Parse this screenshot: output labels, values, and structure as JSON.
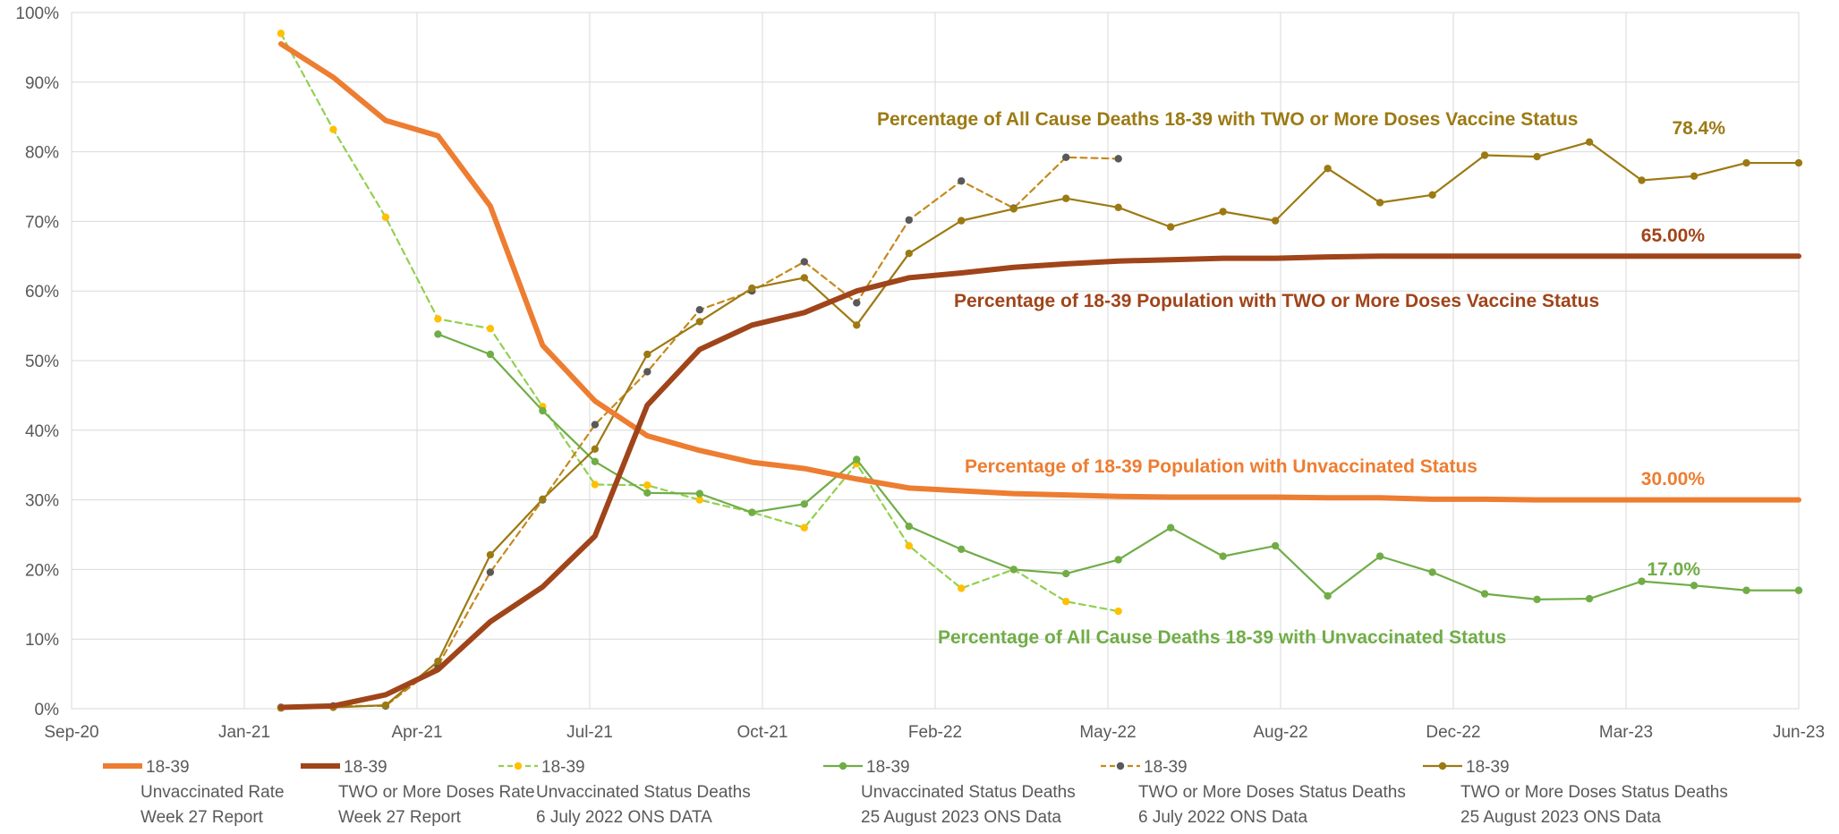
{
  "chart_data": {
    "type": "line",
    "x_ticks": [
      "Sep-20",
      "Jan-21",
      "Apr-21",
      "Jul-21",
      "Oct-21",
      "Feb-22",
      "May-22",
      "Aug-22",
      "Dec-22",
      "Mar-23",
      "Jun-23"
    ],
    "y_ticks": [
      "0%",
      "10%",
      "20%",
      "30%",
      "40%",
      "50%",
      "60%",
      "70%",
      "80%",
      "90%",
      "100%"
    ],
    "ylim": [
      0,
      100
    ],
    "grid": true,
    "legend_position": "bottom",
    "series": [
      {
        "name": "18-39",
        "legend_line2": "Unvaccinated Rate",
        "legend_line3": "Week 27 Report",
        "color": "#ED7D31",
        "style": "solid",
        "width": "thick",
        "x": [
          "2021-01-01",
          "2021-02-01",
          "2021-03-01",
          "2021-04-01",
          "2021-05-01",
          "2021-06-01",
          "2021-07-01",
          "2021-08-01",
          "2021-09-01",
          "2021-10-01",
          "2021-11-01",
          "2021-12-01",
          "2022-01-01",
          "2022-02-01",
          "2022-03-01",
          "2022-04-01",
          "2022-05-01",
          "2022-06-01",
          "2022-07-01",
          "2022-08-01",
          "2022-09-01",
          "2022-10-01",
          "2022-11-01",
          "2022-12-01",
          "2023-01-01",
          "2023-02-01",
          "2023-03-01",
          "2023-04-01",
          "2023-05-01",
          "2023-06-01"
        ],
        "values": [
          95.5,
          90.7,
          84.5,
          82.3,
          72.2,
          52.2,
          44.2,
          39.2,
          37.1,
          35.4,
          34.5,
          33.0,
          31.7,
          31.3,
          30.9,
          30.7,
          30.5,
          30.4,
          30.4,
          30.4,
          30.3,
          30.3,
          30.1,
          30.1,
          30.0,
          30.0,
          30.0,
          30.0,
          30.0,
          30.0
        ],
        "marker": "none"
      },
      {
        "name": "18-39",
        "legend_line2": "TWO or More Doses Rate",
        "legend_line3": "Week 27 Report",
        "color": "#A0441A",
        "style": "solid",
        "width": "thick",
        "x": [
          "2021-01-01",
          "2021-02-01",
          "2021-03-01",
          "2021-04-01",
          "2021-05-01",
          "2021-06-01",
          "2021-07-01",
          "2021-08-01",
          "2021-09-01",
          "2021-10-01",
          "2021-11-01",
          "2021-12-01",
          "2022-01-01",
          "2022-02-01",
          "2022-03-01",
          "2022-04-01",
          "2022-05-01",
          "2022-06-01",
          "2022-07-01",
          "2022-08-01",
          "2022-09-01",
          "2022-10-01",
          "2022-11-01",
          "2022-12-01",
          "2023-01-01",
          "2023-02-01",
          "2023-03-01",
          "2023-04-01",
          "2023-05-01",
          "2023-06-01"
        ],
        "values": [
          0.2,
          0.4,
          2.0,
          5.6,
          12.5,
          17.5,
          24.8,
          43.6,
          51.6,
          55.1,
          56.9,
          60.0,
          61.9,
          62.6,
          63.4,
          63.9,
          64.3,
          64.5,
          64.7,
          64.7,
          64.9,
          65.0,
          65.0,
          65.0,
          65.0,
          65.0,
          65.0,
          65.0,
          65.0,
          65.0
        ],
        "marker": "none"
      },
      {
        "name": "18-39",
        "legend_line2": "Unvaccinated Status Deaths",
        "legend_line3": "6 July 2022 ONS DATA",
        "color": "#92D050",
        "marker_color": "#FFC000",
        "style": "dashed",
        "width": "thin",
        "x": [
          "2021-01-01",
          "2021-02-01",
          "2021-03-01",
          "2021-04-01",
          "2021-05-01",
          "2021-06-01",
          "2021-07-01",
          "2021-08-01",
          "2021-09-01",
          "2021-10-01",
          "2021-11-01",
          "2021-12-01",
          "2022-01-01",
          "2022-02-01",
          "2022-03-01",
          "2022-04-01",
          "2022-05-01"
        ],
        "values": [
          97.0,
          83.2,
          70.6,
          56.0,
          54.6,
          43.4,
          32.2,
          32.1,
          30.0,
          28.2,
          26.0,
          35.2,
          23.4,
          17.3,
          20.0,
          15.4,
          14.0
        ],
        "marker": "dot"
      },
      {
        "name": "18-39",
        "legend_line2": "Unvaccinated Status Deaths",
        "legend_line3": "25 August 2023 ONS Data",
        "color": "#70AD47",
        "marker_color": "#70AD47",
        "style": "solid",
        "width": "thin",
        "x": [
          "2021-04-01",
          "2021-05-01",
          "2021-06-01",
          "2021-07-01",
          "2021-08-01",
          "2021-09-01",
          "2021-10-01",
          "2021-11-01",
          "2021-12-01",
          "2022-01-01",
          "2022-02-01",
          "2022-03-01",
          "2022-04-01",
          "2022-05-01",
          "2022-06-01",
          "2022-07-01",
          "2022-08-01",
          "2022-09-01",
          "2022-10-01",
          "2022-11-01",
          "2022-12-01",
          "2023-01-01",
          "2023-02-01",
          "2023-03-01",
          "2023-04-01",
          "2023-05-01",
          "2023-06-01"
        ],
        "values": [
          53.8,
          50.9,
          42.8,
          35.5,
          31.0,
          30.9,
          28.2,
          29.4,
          35.8,
          26.2,
          22.9,
          20.0,
          19.4,
          21.4,
          26.0,
          21.9,
          23.4,
          16.2,
          21.9,
          19.6,
          16.5,
          15.7,
          15.8,
          18.3,
          17.7,
          17.0,
          17.0
        ],
        "marker": "dot"
      },
      {
        "name": "18-39",
        "legend_line2": "TWO or More Doses Status Deaths",
        "legend_line3": "6 July 2022 ONS Data",
        "color": "#C5891C",
        "marker_color": "#595959",
        "style": "dashed",
        "width": "thin",
        "x": [
          "2021-01-01",
          "2021-02-01",
          "2021-03-01",
          "2021-04-01",
          "2021-05-01",
          "2021-06-01",
          "2021-07-01",
          "2021-08-01",
          "2021-09-01",
          "2021-10-01",
          "2021-11-01",
          "2021-12-01",
          "2022-01-01",
          "2022-02-01",
          "2022-03-01",
          "2022-04-01",
          "2022-05-01"
        ],
        "values": [
          0.2,
          0.4,
          0.4,
          6.2,
          19.6,
          30.0,
          40.8,
          48.4,
          57.3,
          60.0,
          64.2,
          58.3,
          70.2,
          75.8,
          71.9,
          79.2,
          79.0
        ],
        "marker": "dot"
      },
      {
        "name": "18-39",
        "legend_line2": "TWO or More Doses Status Deaths",
        "legend_line3": "25 August 2023 ONS Data",
        "color": "#9C7A13",
        "marker_color": "#9C7A13",
        "style": "solid",
        "width": "thin",
        "x": [
          "2021-01-01",
          "2021-02-01",
          "2021-03-01",
          "2021-04-01",
          "2021-05-01",
          "2021-06-01",
          "2021-07-01",
          "2021-08-01",
          "2021-09-01",
          "2021-10-01",
          "2021-11-01",
          "2021-12-01",
          "2022-01-01",
          "2022-02-01",
          "2022-03-01",
          "2022-04-01",
          "2022-05-01",
          "2022-06-01",
          "2022-07-01",
          "2022-08-01",
          "2022-09-01",
          "2022-10-01",
          "2022-11-01",
          "2022-12-01",
          "2023-01-01",
          "2023-02-01",
          "2023-03-01",
          "2023-04-01",
          "2023-05-01",
          "2023-06-01"
        ],
        "values": [
          0.1,
          0.2,
          0.5,
          6.8,
          22.1,
          30.1,
          37.3,
          50.9,
          55.6,
          60.4,
          61.9,
          55.1,
          65.4,
          70.1,
          71.8,
          73.3,
          72.0,
          69.2,
          71.4,
          70.1,
          77.6,
          72.7,
          73.8,
          79.5,
          79.3,
          81.4,
          75.9,
          76.5,
          78.4,
          78.4
        ],
        "marker": "dot"
      }
    ],
    "annotations": [
      {
        "id": "a1",
        "text": "Percentage of All Cause Deaths 18-39 with TWO or More Doses Vaccine Status",
        "color": "#9C7A13"
      },
      {
        "id": "a2",
        "text": "78.4%",
        "color": "#9C7A13"
      },
      {
        "id": "a3",
        "text": "65.00%",
        "color": "#A0441A"
      },
      {
        "id": "a4",
        "text": "Percentage of 18-39 Population  with TWO or More Doses Vaccine Status",
        "color": "#A0441A"
      },
      {
        "id": "a5",
        "text": "Percentage of 18-39  Population  with Unvaccinated Status",
        "color": "#ED7D31"
      },
      {
        "id": "a6",
        "text": "30.00%",
        "color": "#ED7D31"
      },
      {
        "id": "a7",
        "text": "17.0%",
        "color": "#70AD47"
      },
      {
        "id": "a8",
        "text": "Percentage of All Cause Deaths 18-39 with Unvaccinated Status",
        "color": "#70AD47"
      }
    ]
  }
}
